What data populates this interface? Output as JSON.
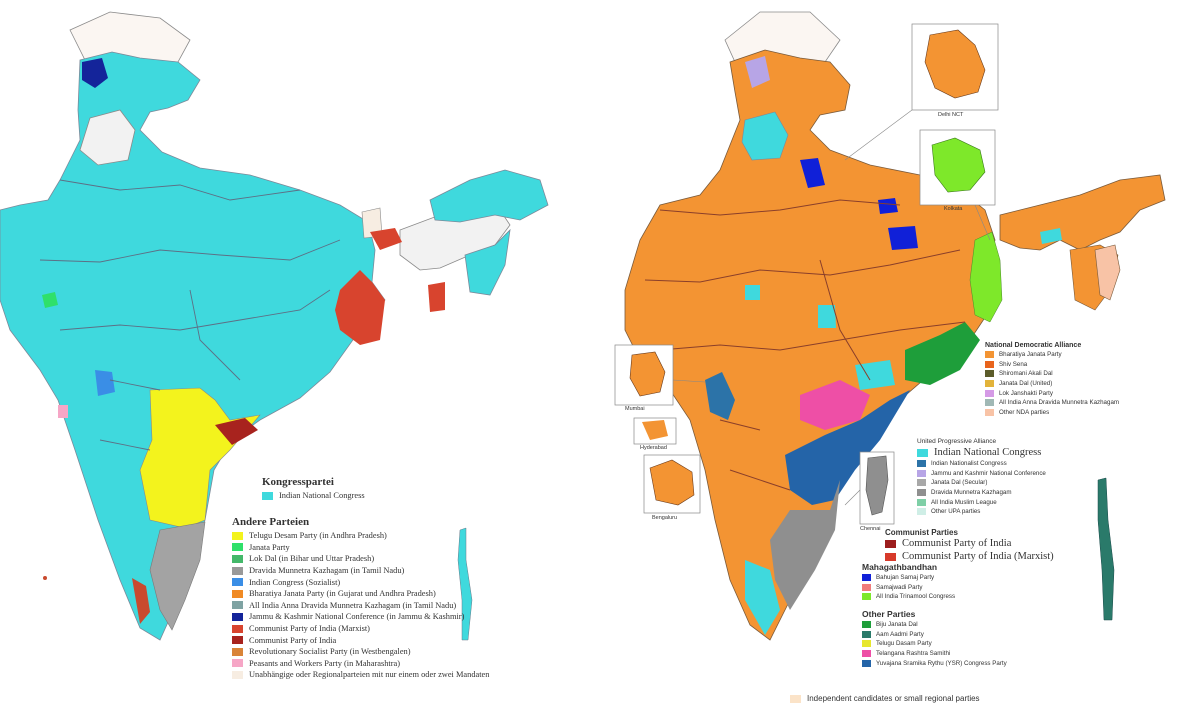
{
  "left_legend": {
    "congress_heading": "Kongresspartei",
    "congress_entries": [
      {
        "label": "Indian National Congress",
        "color": "#3fd9dd"
      }
    ],
    "other_heading": "Andere Parteien",
    "other_entries": [
      {
        "label": "Telugu Desam Party (in Andhra Pradesh)",
        "color": "#f3f31d"
      },
      {
        "label": "Janata Party",
        "color": "#2fe06a"
      },
      {
        "label": "Lok Dal (in Bihar und Uttar Pradesh)",
        "color": "#44b86a"
      },
      {
        "label": "Dravida Munnetra Kazhagam (in Tamil Nadu)",
        "color": "#999999"
      },
      {
        "label": "Indian Congress (Sozialist)",
        "color": "#3a8ee6"
      },
      {
        "label": "Bharatiya Janata Party (in Gujarat und Andhra Pradesh)",
        "color": "#f08a24"
      },
      {
        "label": "All India Anna Dravida Munnetra Kazhagam (in Tamil Nadu)",
        "color": "#7fa3a3"
      },
      {
        "label": "Jammu & Kashmir National Conference (in Jammu & Kashmir)",
        "color": "#14249a"
      },
      {
        "label": "Communist Party of India (Marxist)",
        "color": "#d8442e"
      },
      {
        "label": "Communist Party of India",
        "color": "#a8231e"
      },
      {
        "label": "Revolutionary Socialist Party (in Westbengalen)",
        "color": "#d98438"
      },
      {
        "label": "Peasants and Workers Party (in Maharashtra)",
        "color": "#f6a6c6"
      },
      {
        "label": "Unabhängige oder Regionalparteien mit nur einem oder zwei Mandaten",
        "color": "#f7ede2"
      }
    ]
  },
  "right_legend": {
    "nda_heading": "National Democratic Alliance",
    "nda_entries": [
      {
        "label": "Bharatiya Janata Party",
        "color": "#f39433"
      },
      {
        "label": "Shiv Sena",
        "color": "#e8641c"
      },
      {
        "label": "Shiromani Akali Dal",
        "color": "#5c5c2a"
      },
      {
        "label": "Janata Dal (United)",
        "color": "#e2b33a"
      },
      {
        "label": "Lok Janshakti Party",
        "color": "#d59ae6"
      },
      {
        "label": "All India Anna Dravida Munnetra Kazhagam",
        "color": "#a0b8b5"
      },
      {
        "label": "Other NDA parties",
        "color": "#f8c3a6"
      }
    ],
    "upa_heading": "United Progressive Alliance",
    "upa_main": {
      "label": "Indian National Congress",
      "color": "#3fd9dd"
    },
    "upa_entries": [
      {
        "label": "Indian Nationalist Congress",
        "color": "#2c73a8"
      },
      {
        "label": "Jammu and Kashmir National Conference",
        "color": "#b7a5e6"
      },
      {
        "label": "Janata Dal (Secular)",
        "color": "#a8a8a8"
      },
      {
        "label": "Dravida Munnetra Kazhagam",
        "color": "#8f8f8f"
      },
      {
        "label": "All India Muslim League",
        "color": "#7ecfa6"
      },
      {
        "label": "Other UPA parties",
        "color": "#cfeee6"
      }
    ],
    "communist_heading": "Communist Parties",
    "communist_entries": [
      {
        "label": "Communist Party of India",
        "color": "#9c1d1d"
      },
      {
        "label": "Communist Party of India (Marxist)",
        "color": "#d73a2a"
      }
    ],
    "mgb_heading": "Mahagathbandhan",
    "mgb_entries": [
      {
        "label": "Bahujan Samaj Party",
        "color": "#1020d8"
      },
      {
        "label": "Samajwadi Party",
        "color": "#f07b7b"
      },
      {
        "label": "All India Trinamool Congress",
        "color": "#7ee82a"
      }
    ],
    "other_heading": "Other Parties",
    "other_entries": [
      {
        "label": "Biju Janata Dal",
        "color": "#1e9e3a"
      },
      {
        "label": "Aam Aadmi Party",
        "color": "#2a7a6a"
      },
      {
        "label": "Telugu Dasam Party",
        "color": "#e7e72d"
      },
      {
        "label": "Telangana Rashtra Samithi",
        "color": "#ee4fa6"
      },
      {
        "label": "Yuvajana Sramika Rythu (YSR) Congress Party",
        "color": "#2464a8"
      }
    ],
    "independent": {
      "label": "Independent candidates or small regional parties",
      "color": "#fbe3c8"
    }
  },
  "insets": {
    "delhi": "Delhi NCT",
    "kolkata": "Kolkata",
    "mumbai": "Mumbai",
    "hyderabad": "Hyderabad",
    "bengaluru": "Bengaluru",
    "chennai": "Chennai"
  }
}
